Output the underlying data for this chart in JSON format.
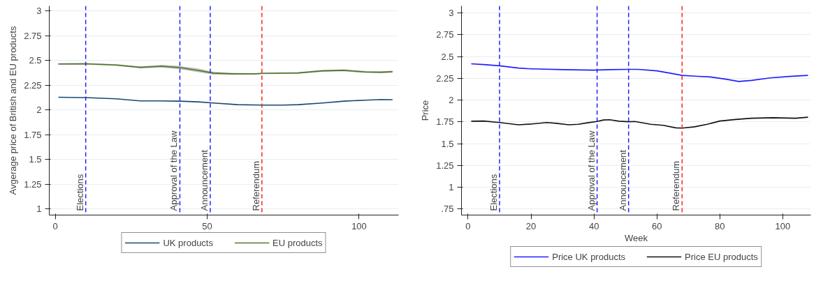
{
  "chart_data": [
    {
      "type": "line",
      "ylabel": "Avgerage price of British and EU products",
      "xlim": [
        -2,
        113
      ],
      "ylim": [
        0.94,
        3.05
      ],
      "xticks": [
        0,
        50,
        100
      ],
      "yticks": [
        1,
        1.25,
        1.5,
        1.75,
        2,
        2.25,
        2.5,
        2.75,
        3
      ],
      "grid": "y",
      "legend": "bottom",
      "line_style": "solid",
      "ref_lines": [
        {
          "axis": "x",
          "value": 10,
          "label": "Elections",
          "color": "#1f1fff",
          "line_style": "dashed"
        },
        {
          "axis": "x",
          "value": 41,
          "label": "Approval of the Law",
          "color": "#1f1fff",
          "line_style": "dashed"
        },
        {
          "axis": "x",
          "value": 51,
          "label": "Announcement",
          "color": "#1f1fff",
          "line_style": "dashed"
        },
        {
          "axis": "x",
          "value": 68,
          "label": "Referendum",
          "color": "#ff2020",
          "line_style": "dashed"
        }
      ],
      "series": [
        {
          "name": "UK products",
          "color": "#1a476f",
          "x": [
            1,
            10,
            20,
            28,
            35,
            41,
            47,
            52,
            60,
            68,
            75,
            80,
            88,
            95,
            102,
            107,
            111
          ],
          "values": [
            2.129,
            2.125,
            2.113,
            2.092,
            2.092,
            2.089,
            2.082,
            2.071,
            2.054,
            2.049,
            2.049,
            2.054,
            2.071,
            2.089,
            2.099,
            2.106,
            2.104
          ]
        },
        {
          "name": "EU products",
          "color": "#55752f",
          "x": [
            1,
            10,
            20,
            28,
            35,
            41,
            47,
            52,
            58,
            66,
            68,
            75,
            80,
            88,
            95,
            102,
            107,
            111
          ],
          "values": [
            2.464,
            2.466,
            2.454,
            2.43,
            2.442,
            2.428,
            2.4,
            2.372,
            2.365,
            2.365,
            2.369,
            2.372,
            2.374,
            2.395,
            2.4,
            2.384,
            2.381,
            2.386
          ],
          "lower": [
            2.456,
            2.458,
            2.445,
            2.42,
            2.428,
            2.412,
            2.382,
            2.358,
            2.355,
            2.358,
            2.362,
            2.365,
            2.366,
            2.386,
            2.39,
            2.374,
            2.371,
            2.376
          ],
          "upper": [
            2.472,
            2.474,
            2.463,
            2.44,
            2.456,
            2.444,
            2.418,
            2.386,
            2.375,
            2.372,
            2.376,
            2.379,
            2.382,
            2.404,
            2.41,
            2.394,
            2.391,
            2.396
          ]
        }
      ]
    },
    {
      "type": "line",
      "xlabel": "Week",
      "ylabel": "Price",
      "xlim": [
        -2.1,
        108.9
      ],
      "ylim": [
        0.68,
        3.08
      ],
      "xticks": [
        0,
        20,
        40,
        60,
        80,
        100
      ],
      "yticks": [
        {
          "value": 0.75,
          "label": ".75"
        },
        1,
        1.25,
        1.5,
        1.75,
        2,
        2.25,
        2.5,
        2.75,
        3
      ],
      "grid": "y",
      "legend": "bottom",
      "line_style": "solid",
      "ref_lines": [
        {
          "axis": "x",
          "value": 10,
          "label": "Elections",
          "color": "#1f1fff",
          "line_style": "dashed"
        },
        {
          "axis": "x",
          "value": 41,
          "label": "Approval of the Law",
          "color": "#1f1fff",
          "line_style": "dashed"
        },
        {
          "axis": "x",
          "value": 51,
          "label": "Announcement",
          "color": "#1f1fff",
          "line_style": "dashed"
        },
        {
          "axis": "x",
          "value": 68,
          "label": "Referendum",
          "color": "#ff2020",
          "line_style": "dashed"
        }
      ],
      "series": [
        {
          "name": "Price UK products",
          "color": "#1f1fff",
          "x": [
            1,
            5,
            10,
            16,
            20,
            30,
            40,
            45,
            51,
            54,
            60,
            65,
            68,
            72,
            77,
            82,
            86,
            90,
            96,
            102,
            108
          ],
          "values": [
            2.416,
            2.407,
            2.393,
            2.367,
            2.358,
            2.349,
            2.343,
            2.349,
            2.352,
            2.352,
            2.335,
            2.303,
            2.283,
            2.274,
            2.265,
            2.239,
            2.213,
            2.225,
            2.254,
            2.271,
            2.283
          ]
        },
        {
          "name": "Price EU products",
          "color": "#111111",
          "x": [
            1,
            5,
            10,
            16,
            20,
            25,
            28,
            32,
            35,
            38,
            41,
            43,
            45,
            48,
            51,
            53,
            58,
            62,
            66,
            68,
            72,
            76,
            80,
            85,
            90,
            97,
            104,
            108
          ],
          "values": [
            1.757,
            1.759,
            1.742,
            1.716,
            1.725,
            1.742,
            1.733,
            1.716,
            1.722,
            1.739,
            1.754,
            1.771,
            1.774,
            1.757,
            1.751,
            1.754,
            1.722,
            1.71,
            1.681,
            1.678,
            1.693,
            1.722,
            1.759,
            1.777,
            1.791,
            1.797,
            1.791,
            1.803
          ]
        }
      ]
    }
  ]
}
